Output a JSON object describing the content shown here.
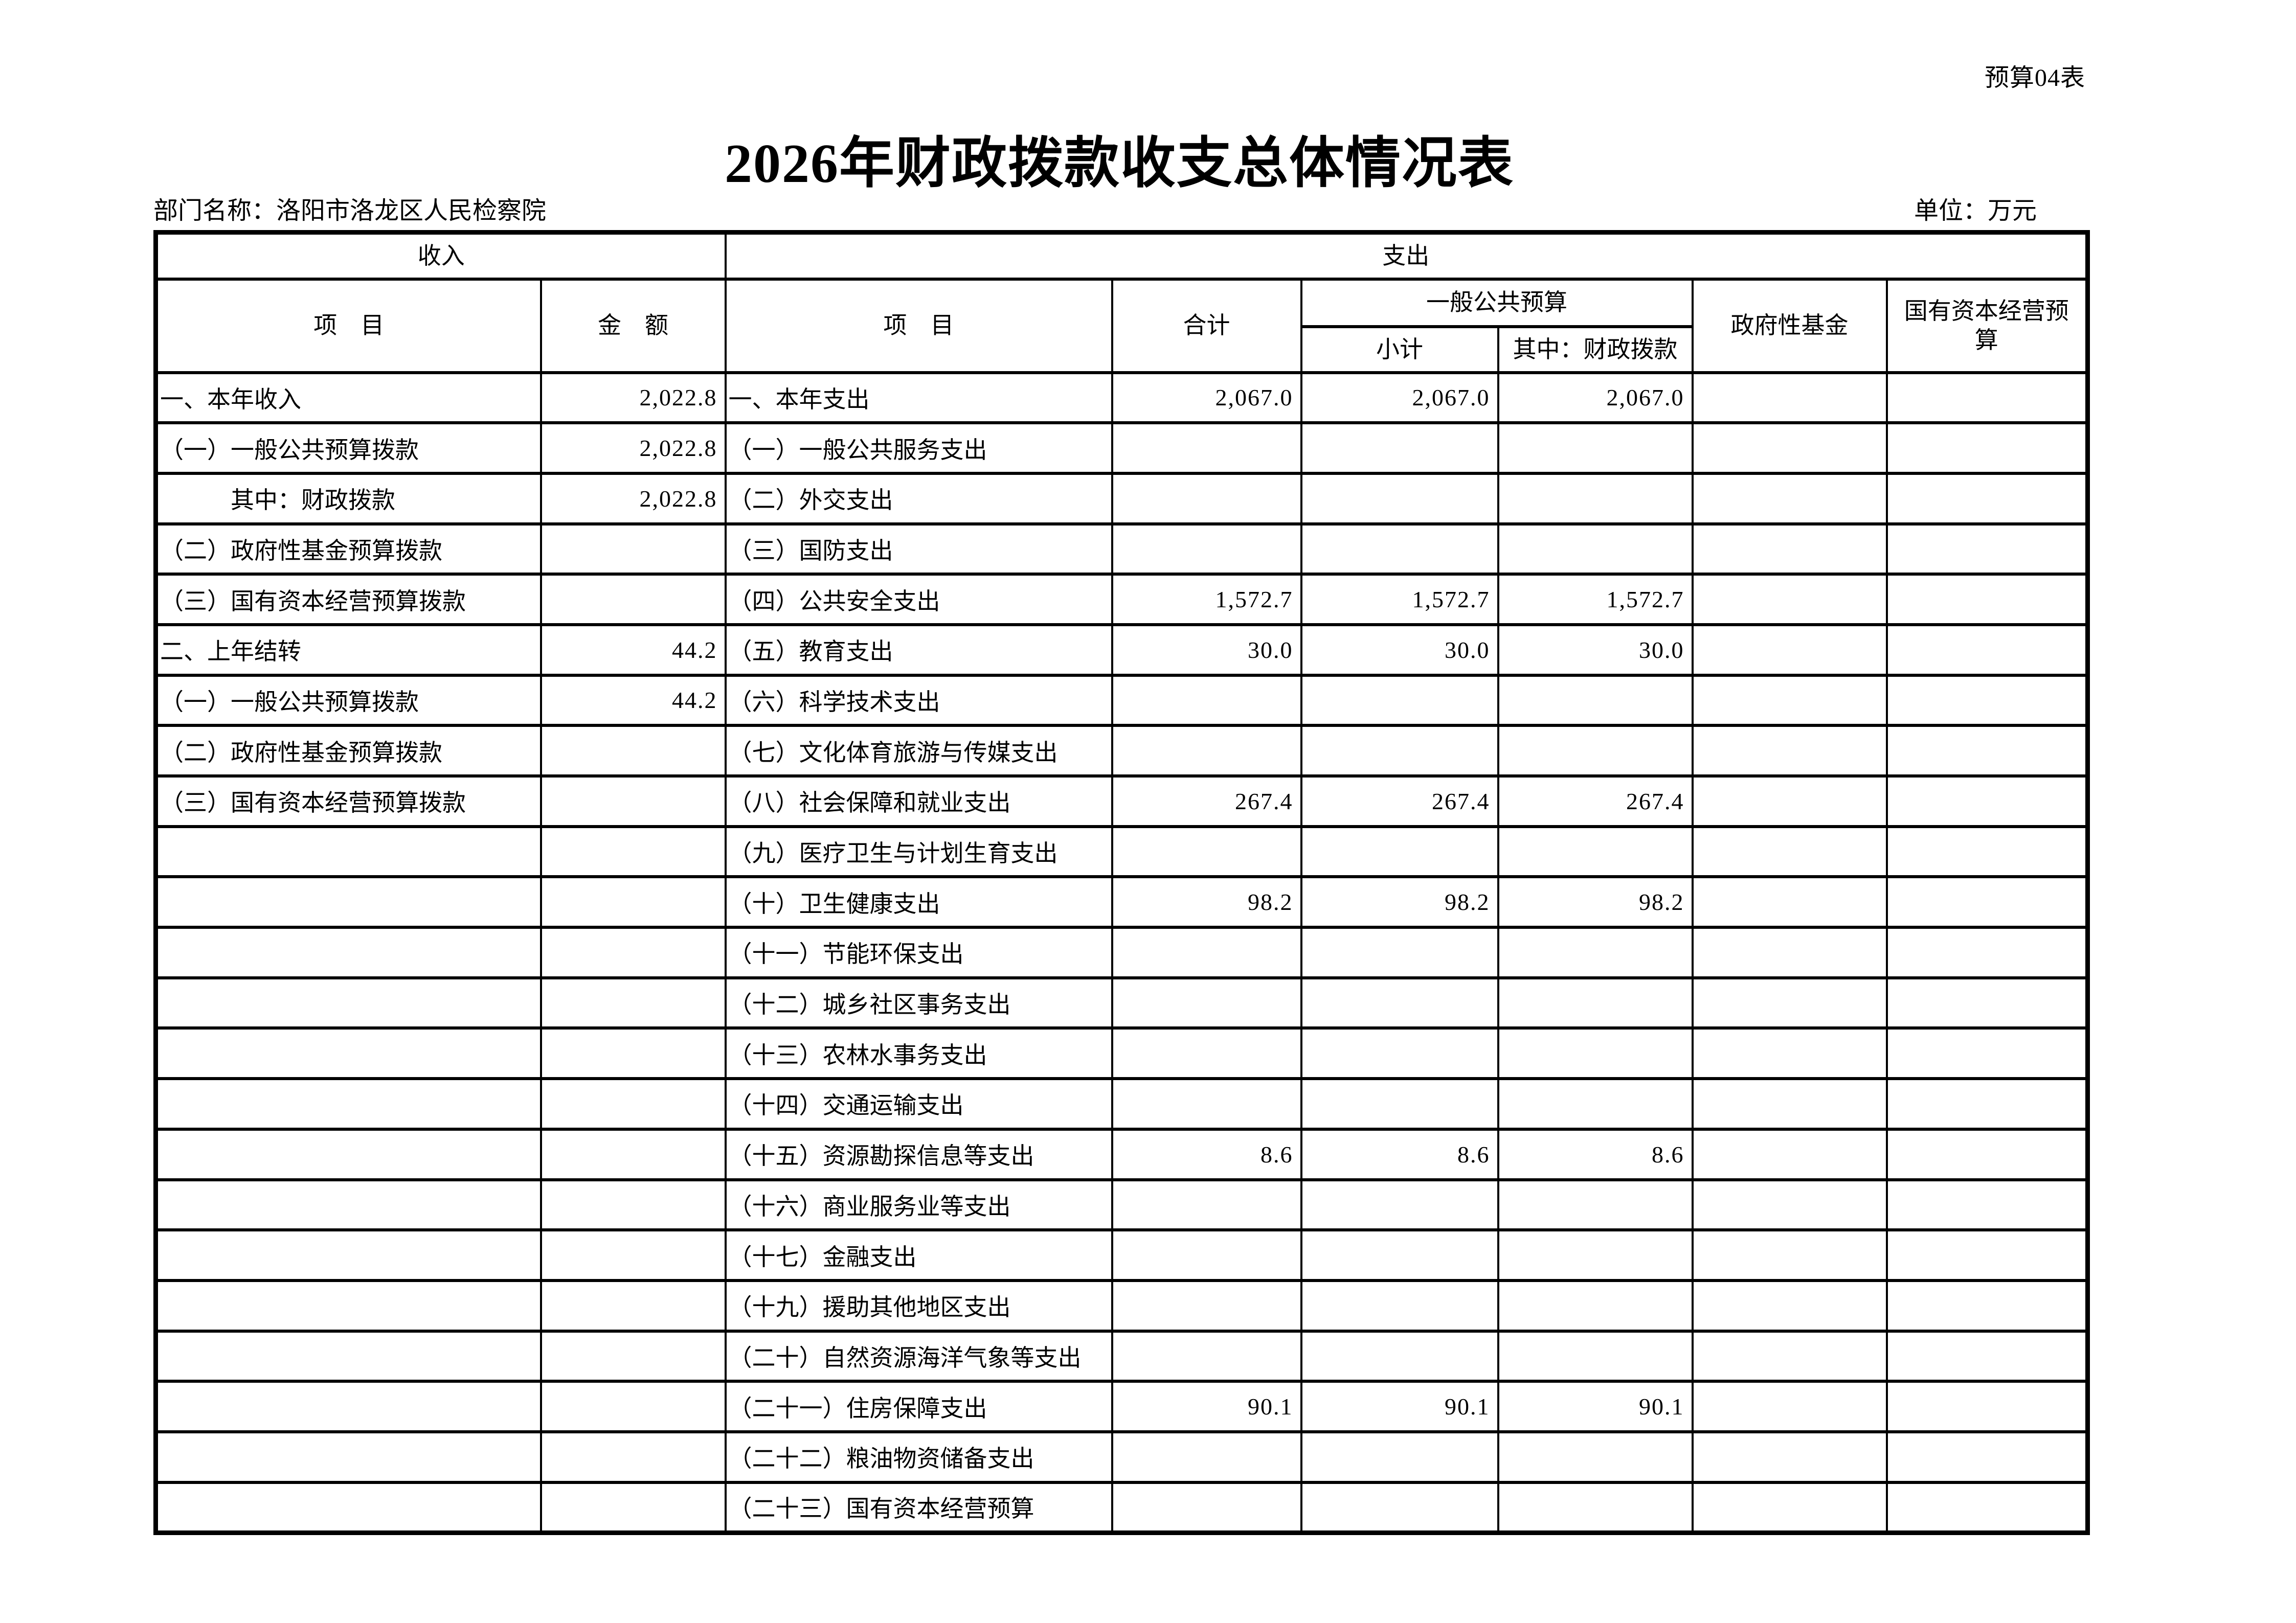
{
  "page": {
    "corner_label": "预算04表",
    "title": "2026年财政拨款收支总体情况表",
    "department_label": "部门名称：洛阳市洛龙区人民检察院",
    "unit_label": "单位：万元"
  },
  "table": {
    "header": {
      "income_group": "收入",
      "expense_group": "支出",
      "income_item": "项　目",
      "income_amount": "金　额",
      "expense_item": "项　目",
      "total": "合计",
      "general_public_budget": "一般公共预算",
      "subtotal": "小计",
      "fiscal_appropriation": "其中：财政拨款",
      "gov_fund": "政府性基金",
      "state_capital": "国有资本经营预算"
    },
    "rows": [
      [
        "一、本年收入",
        "2,022.8",
        "一、本年支出",
        "2,067.0",
        "2,067.0",
        "2,067.0",
        "",
        ""
      ],
      [
        "（一）一般公共预算拨款",
        "2,022.8",
        "（一）一般公共服务支出",
        "",
        "",
        "",
        "",
        ""
      ],
      [
        "　　　其中：财政拨款",
        "2,022.8",
        "（二）外交支出",
        "",
        "",
        "",
        "",
        ""
      ],
      [
        "（二）政府性基金预算拨款",
        "",
        "（三）国防支出",
        "",
        "",
        "",
        "",
        ""
      ],
      [
        "（三）国有资本经营预算拨款",
        "",
        "（四）公共安全支出",
        "1,572.7",
        "1,572.7",
        "1,572.7",
        "",
        ""
      ],
      [
        "二、上年结转",
        "44.2",
        "（五）教育支出",
        "30.0",
        "30.0",
        "30.0",
        "",
        ""
      ],
      [
        "（一）一般公共预算拨款",
        "44.2",
        "（六）科学技术支出",
        "",
        "",
        "",
        "",
        ""
      ],
      [
        "（二）政府性基金预算拨款",
        "",
        "（七）文化体育旅游与传媒支出",
        "",
        "",
        "",
        "",
        ""
      ],
      [
        "（三）国有资本经营预算拨款",
        "",
        "（八）社会保障和就业支出",
        "267.4",
        "267.4",
        "267.4",
        "",
        ""
      ],
      [
        "",
        "",
        "（九）医疗卫生与计划生育支出",
        "",
        "",
        "",
        "",
        ""
      ],
      [
        "",
        "",
        "（十）卫生健康支出",
        "98.2",
        "98.2",
        "98.2",
        "",
        ""
      ],
      [
        "",
        "",
        "（十一）节能环保支出",
        "",
        "",
        "",
        "",
        ""
      ],
      [
        "",
        "",
        "（十二）城乡社区事务支出",
        "",
        "",
        "",
        "",
        ""
      ],
      [
        "",
        "",
        "（十三）农林水事务支出",
        "",
        "",
        "",
        "",
        ""
      ],
      [
        "",
        "",
        "（十四）交通运输支出",
        "",
        "",
        "",
        "",
        ""
      ],
      [
        "",
        "",
        "（十五）资源勘探信息等支出",
        "8.6",
        "8.6",
        "8.6",
        "",
        ""
      ],
      [
        "",
        "",
        "（十六）商业服务业等支出",
        "",
        "",
        "",
        "",
        ""
      ],
      [
        "",
        "",
        "（十七）金融支出",
        "",
        "",
        "",
        "",
        ""
      ],
      [
        "",
        "",
        "（十九）援助其他地区支出",
        "",
        "",
        "",
        "",
        ""
      ],
      [
        "",
        "",
        "（二十）自然资源海洋气象等支出",
        "",
        "",
        "",
        "",
        ""
      ],
      [
        "",
        "",
        "（二十一）住房保障支出",
        "90.1",
        "90.1",
        "90.1",
        "",
        ""
      ],
      [
        "",
        "",
        "（二十二）粮油物资储备支出",
        "",
        "",
        "",
        "",
        ""
      ],
      [
        "",
        "",
        "（二十三）国有资本经营预算",
        "",
        "",
        "",
        "",
        ""
      ]
    ]
  }
}
